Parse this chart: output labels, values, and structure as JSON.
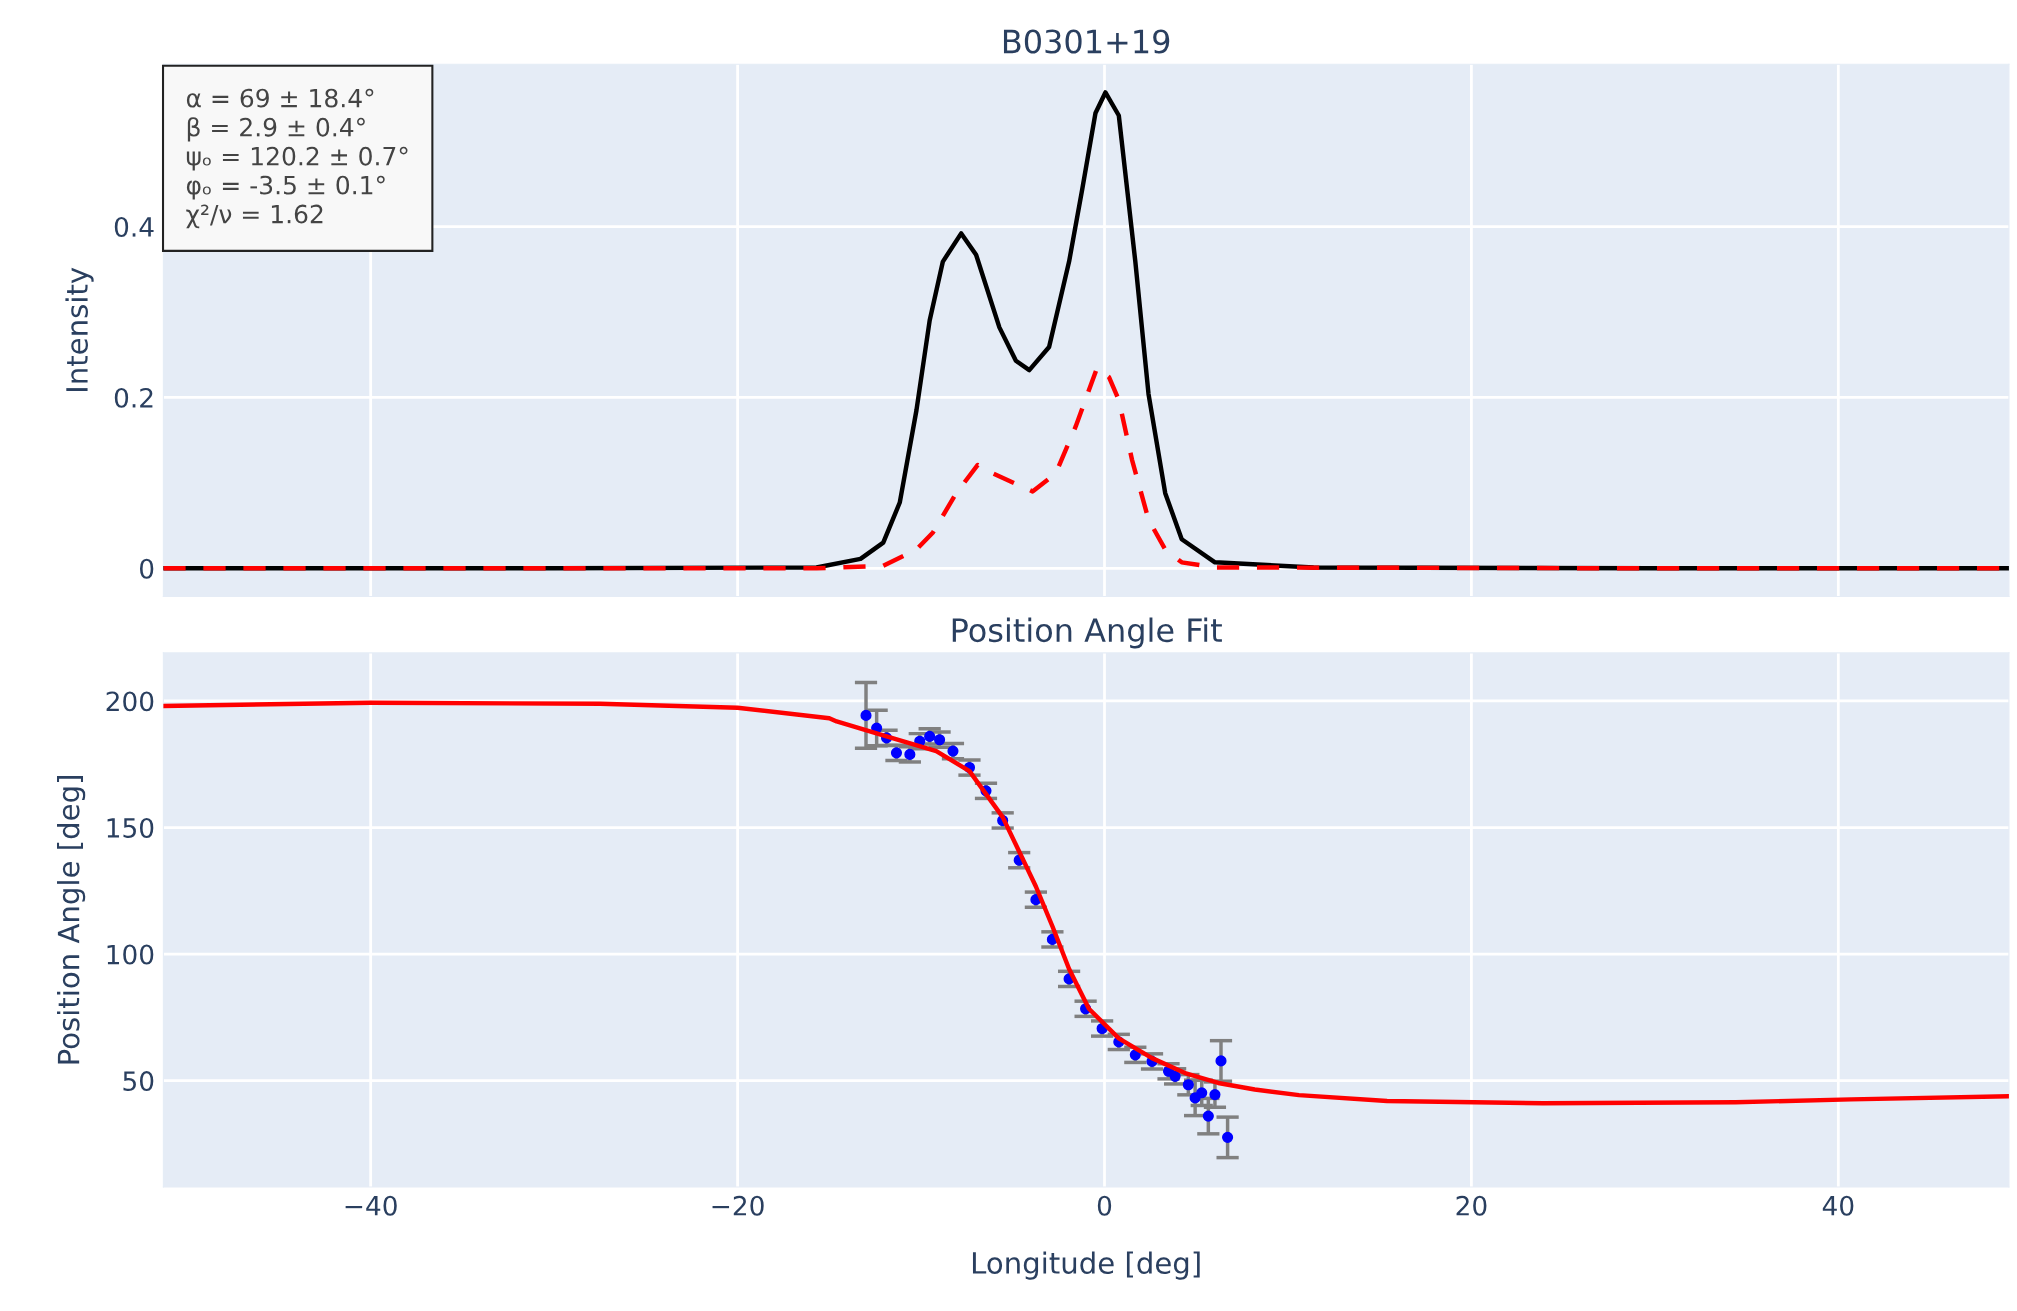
{
  "chart_data": [
    {
      "type": "line",
      "title": "B0301+19",
      "ylabel": "Intensity",
      "xlim": [
        -51.3,
        49.3
      ],
      "ylim": [
        -0.033,
        0.59
      ],
      "yticks": [
        0,
        0.2,
        0.4
      ],
      "grid": true,
      "tick_labels": "y",
      "annotations": [
        "α = 69 ± 18.4°\nβ = 2.9 ± 0.4°\nψₒ = 120.2 ± 0.7°\nφₒ = -3.5 ± 0.1°\nχ²/ν = 1.62"
      ],
      "series": [
        {
          "color": "#000000",
          "line_style": "solid",
          "x": [
            -51.3,
            -30,
            -15.7,
            -13.3,
            -12.06,
            -11.16,
            -10.25,
            -9.53,
            -8.81,
            -7.81,
            -7.0,
            -5.73,
            -4.83,
            -4.1,
            -3.02,
            -1.93,
            -1.21,
            -0.49,
            0.05,
            0.78,
            1.68,
            2.4,
            3.31,
            4.21,
            6.02,
            11.4,
            30,
            49.3
          ],
          "values": [
            0,
            0,
            0.001,
            0.011,
            0.03,
            0.077,
            0.185,
            0.29,
            0.359,
            0.392,
            0.367,
            0.282,
            0.243,
            0.232,
            0.259,
            0.359,
            0.444,
            0.533,
            0.557,
            0.53,
            0.359,
            0.204,
            0.088,
            0.034,
            0.007,
            0.001,
            0,
            0
          ]
        },
        {
          "color": "#ff0000",
          "line_style": "dashed",
          "x": [
            -51.3,
            -30,
            -15.7,
            -12.06,
            -10.25,
            -9.35,
            -8.08,
            -6.91,
            -6.27,
            -3.92,
            -2.66,
            -1.57,
            -0.4,
            0.24,
            0.78,
            1.5,
            2.4,
            3.31,
            4.21,
            6.02,
            30,
            49.3
          ],
          "values": [
            0,
            0,
            0,
            0.003,
            0.022,
            0.042,
            0.088,
            0.121,
            0.113,
            0.09,
            0.111,
            0.166,
            0.235,
            0.224,
            0.197,
            0.127,
            0.057,
            0.022,
            0.007,
            0.001,
            0,
            0
          ]
        }
      ]
    },
    {
      "type": "line",
      "title": "Position Angle Fit",
      "xlabel": "Longitude [deg]",
      "ylabel": "Position Angle [deg]",
      "xlim": [
        -51.3,
        49.3
      ],
      "ylim": [
        8,
        219
      ],
      "xticks": [
        {
          "value": -40,
          "label": "−40"
        },
        {
          "value": -20,
          "label": "−20"
        },
        0,
        20,
        40
      ],
      "yticks": [
        50,
        100,
        150,
        200
      ],
      "grid": true,
      "series": [
        {
          "color": "#ff0000",
          "line_style": "solid",
          "x": [
            -51.3,
            -40,
            -27.5,
            -20,
            -15.0,
            -14.6,
            -11.88,
            -9.17,
            -7.36,
            -5.55,
            -3.74,
            -2.84,
            -1.93,
            -0.85,
            0.78,
            2.59,
            4.39,
            6.2,
            8.19,
            10.6,
            15.4,
            23.9,
            34.4,
            40.7,
            49.2
          ],
          "values": [
            198.0,
            199.3,
            198.9,
            197.3,
            193.2,
            191.9,
            186.0,
            180.2,
            172.3,
            154.1,
            126.7,
            111.0,
            94.1,
            78.4,
            66.7,
            58.9,
            53.0,
            49.1,
            46.5,
            44.3,
            42.0,
            41.1,
            41.5,
            42.6,
            43.8
          ]
        },
        {
          "type": "scatter",
          "color": "#0000ff",
          "marker": "circle",
          "x": [
            -13.0,
            -12.42,
            -11.88,
            -11.34,
            -10.61,
            -10.07,
            -9.53,
            -8.99,
            -8.26,
            -7.36,
            -6.46,
            -5.55,
            -4.65,
            -3.74,
            -2.84,
            -1.93,
            -1.03,
            -0.13,
            0.78,
            1.68,
            2.59,
            3.49,
            3.85,
            4.57,
            4.94,
            5.3,
            5.66,
            6.02,
            6.35,
            6.71
          ],
          "values": [
            194.3,
            189.3,
            185.4,
            179.5,
            178.9,
            184.1,
            186.0,
            184.7,
            180.2,
            173.7,
            164.5,
            152.8,
            137.1,
            121.5,
            105.8,
            90.2,
            78.4,
            70.6,
            65.3,
            60.2,
            57.6,
            53.7,
            51.7,
            48.4,
            43.2,
            45.2,
            36.0,
            44.5,
            57.8,
            27.6
          ],
          "errors": [
            13,
            7,
            3,
            3,
            3,
            3,
            3,
            3,
            3,
            3,
            3,
            3,
            3,
            3,
            3,
            3,
            3,
            3,
            3,
            3,
            3,
            3,
            3,
            4,
            7,
            5,
            7,
            5,
            8,
            8
          ]
        }
      ]
    }
  ]
}
